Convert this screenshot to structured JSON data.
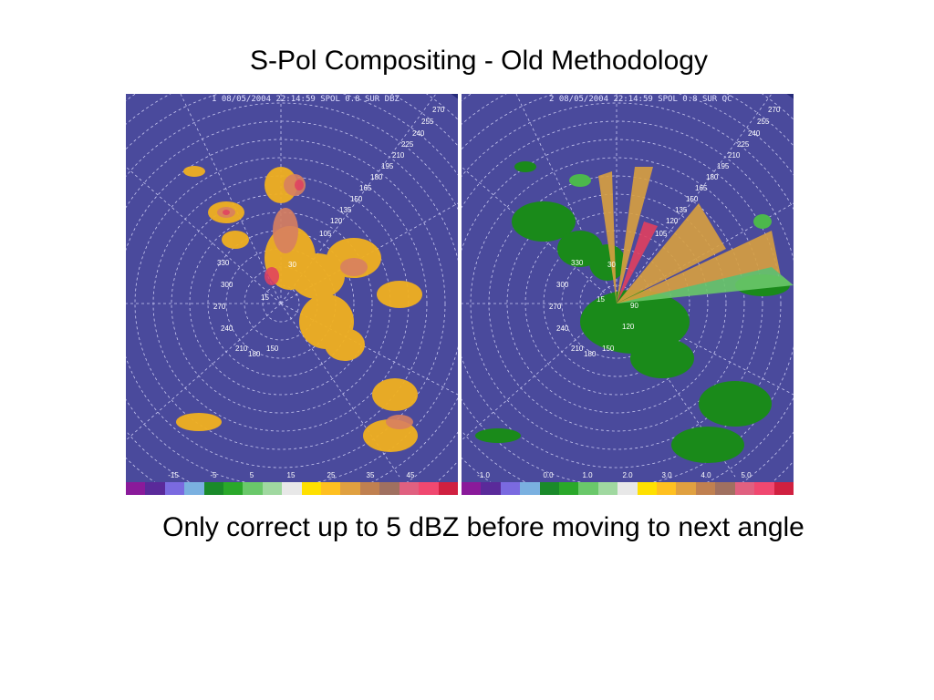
{
  "title": "S-Pol Compositing - Old Methodology",
  "caption": "Only correct up to 5 dBZ before moving to next angle",
  "panels": [
    {
      "header": "1 08/05/2004 22:14:59 SPOL 0.8 SUR DBZ",
      "colorbar_ticks": [
        "-15",
        "-5",
        "5",
        "15",
        "25",
        "35",
        "45"
      ],
      "range_labels": [
        "270",
        "255",
        "240",
        "225",
        "210",
        "195",
        "180",
        "165",
        "150",
        "135",
        "120",
        "105"
      ],
      "azimuth_labels": [
        "330",
        "300",
        "270",
        "240",
        "210",
        "180",
        "150",
        "30",
        "15"
      ]
    },
    {
      "header": "2 08/05/2004 22:14:59 SPOL 0.8 SUR QC",
      "colorbar_ticks": [
        "-1.0",
        "0.0",
        "1.0",
        "2.0",
        "3.0",
        "4.0",
        "5.0"
      ],
      "range_labels": [
        "270",
        "255",
        "240",
        "225",
        "210",
        "195",
        "180",
        "165",
        "150",
        "135",
        "120",
        "105"
      ],
      "azimuth_labels": [
        "330",
        "300",
        "270",
        "240",
        "210",
        "180",
        "150",
        "30",
        "15",
        "90",
        "120"
      ]
    }
  ],
  "colors": {
    "background": "#252a7a",
    "radar_disk": "#4a4a9c",
    "colorbar": [
      "#8a1a9a",
      "#5a2a9a",
      "#7a6ae0",
      "#7ab0e0",
      "#1a8a2a",
      "#2aa82a",
      "#6ac86a",
      "#a0d8a0",
      "#e8e8e8",
      "#ffe000",
      "#ffc020",
      "#e0a040",
      "#c08050",
      "#a07060",
      "#e06080",
      "#f04870",
      "#d02040"
    ]
  }
}
